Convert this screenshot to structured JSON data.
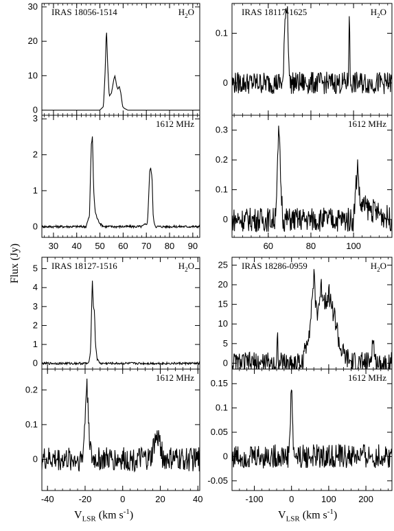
{
  "figure": {
    "y_axis_label": "Flux (Jy)",
    "x_axis_label_main": "V",
    "x_axis_label_sub": "LSR",
    "x_axis_label_unit_pre": "(km s",
    "x_axis_label_unit_sup": "-1",
    "x_axis_label_unit_post": ")"
  },
  "chart_data": [
    {
      "type": "line",
      "title": "IRAS 18056-1514",
      "tag": "H2O",
      "xlim": [
        25,
        93
      ],
      "ylim": [
        -1.5,
        31
      ],
      "yticks": [
        0,
        10,
        20,
        30
      ],
      "xticks": [
        30,
        40,
        50,
        60,
        70,
        80,
        90
      ],
      "show_xtick_labels": false,
      "series": [
        {
          "x": [
            25,
            50,
            51.5,
            52.2,
            52.8,
            53.3,
            54,
            55,
            56,
            56.5,
            57.2,
            57.8,
            58.3,
            59,
            59.8,
            60.5,
            62,
            66,
            93
          ],
          "values": [
            0,
            0,
            1,
            10,
            24,
            14,
            4,
            5,
            9,
            10,
            7,
            6,
            7,
            5,
            1,
            0.5,
            0,
            0,
            0
          ]
        }
      ]
    },
    {
      "type": "line",
      "title": "",
      "tag": "1612 MHz",
      "xlim": [
        25,
        93
      ],
      "ylim": [
        -0.3,
        3.1
      ],
      "yticks": [
        0,
        1,
        2,
        3
      ],
      "xticks": [
        30,
        40,
        50,
        60,
        70,
        80,
        90
      ],
      "show_xtick_labels": true,
      "series": [
        {
          "x": [
            25,
            44,
            45.5,
            46.3,
            46.8,
            47.3,
            48,
            49,
            50.5,
            52,
            68,
            70.5,
            71.5,
            72,
            72.5,
            73,
            74,
            93
          ],
          "values": [
            0,
            0,
            0.3,
            2.3,
            2.5,
            1.0,
            0.4,
            0.2,
            0.05,
            0,
            0,
            0.1,
            1.6,
            1.6,
            1.3,
            0.2,
            0,
            0
          ]
        }
      ]
    },
    {
      "type": "line",
      "title": "IRAS 18117-1625",
      "tag": "H2O",
      "xlim": [
        43,
        118
      ],
      "ylim": [
        -0.065,
        0.16
      ],
      "yticks": [
        0,
        0.1
      ],
      "xticks": [
        60,
        80,
        100
      ],
      "show_xtick_labels": false,
      "series": [
        {
          "x": [
            43,
            67,
            68,
            69,
            70,
            97.5,
            98,
            98.5,
            118
          ],
          "values": [
            0,
            0,
            0.15,
            0.15,
            0,
            0,
            0.15,
            0,
            0
          ]
        }
      ]
    },
    {
      "type": "line",
      "title": "",
      "tag": "1612 MHz",
      "xlim": [
        43,
        118
      ],
      "ylim": [
        -0.06,
        0.35
      ],
      "yticks": [
        0,
        0.1,
        0.2,
        0.3
      ],
      "xticks": [
        60,
        80,
        100
      ],
      "show_xtick_labels": true,
      "series": [
        {
          "x": [
            43,
            63,
            64,
            65,
            66,
            67,
            100,
            101,
            102,
            103,
            118
          ],
          "values": [
            0,
            0,
            0.1,
            0.31,
            0.1,
            0,
            0,
            0.1,
            0.19,
            0.05,
            0
          ]
        }
      ]
    },
    {
      "type": "line",
      "title": "IRAS 18127-1516",
      "tag": "H2O",
      "xlim": [
        -43,
        41
      ],
      "ylim": [
        -0.3,
        5.6
      ],
      "yticks": [
        0,
        1,
        2,
        3,
        4,
        5
      ],
      "xticks": [
        -40,
        -20,
        0,
        20,
        40
      ],
      "show_xtick_labels": false,
      "series": [
        {
          "x": [
            -43,
            -18,
            -17,
            -16.2,
            -15.6,
            -15,
            -14.5,
            -13.5,
            -12,
            41
          ],
          "values": [
            0,
            0,
            0.8,
            4.5,
            3.0,
            2.8,
            1.0,
            0.2,
            0,
            0
          ]
        }
      ]
    },
    {
      "type": "line",
      "title": "",
      "tag": "1612 MHz",
      "xlim": [
        -43,
        41
      ],
      "ylim": [
        -0.09,
        0.26
      ],
      "yticks": [
        0,
        0.1,
        0.2
      ],
      "xticks": [
        -40,
        -20,
        0,
        20,
        40
      ],
      "show_xtick_labels": true,
      "series": [
        {
          "x": [
            -43,
            -22,
            -21,
            -20,
            -19.3,
            -18.5,
            -17.5,
            -16.5,
            15,
            17,
            18.5,
            19.5,
            20.5,
            21.5,
            41
          ],
          "values": [
            0,
            0,
            0.02,
            0.12,
            0.22,
            0.17,
            0.05,
            0,
            0,
            0.05,
            0.06,
            0.06,
            0.03,
            0,
            0
          ]
        }
      ]
    },
    {
      "type": "line",
      "title": "IRAS 18286-0959",
      "tag": "H2O",
      "xlim": [
        -160,
        270
      ],
      "ylim": [
        -1.5,
        27
      ],
      "yticks": [
        0,
        5,
        10,
        15,
        20,
        25
      ],
      "xticks": [
        -100,
        0,
        100,
        200
      ],
      "show_xtick_labels": false,
      "series": [
        {
          "x": [
            -160,
            -40,
            -38,
            -36,
            30,
            40,
            50,
            60,
            65,
            70,
            80,
            90,
            100,
            110,
            120,
            130,
            140,
            150,
            160,
            210,
            215,
            220,
            225,
            270
          ],
          "values": [
            0,
            0,
            9,
            0,
            0,
            5,
            10,
            22,
            15,
            13,
            19,
            16,
            18,
            14,
            10,
            4,
            2,
            1,
            0,
            0,
            3,
            6,
            0,
            0
          ]
        }
      ]
    },
    {
      "type": "line",
      "title": "",
      "tag": "1612 MHz",
      "xlim": [
        -160,
        270
      ],
      "ylim": [
        -0.07,
        0.18
      ],
      "yticks": [
        -0.05,
        0,
        0.05,
        0.1,
        0.15
      ],
      "xticks": [
        -100,
        0,
        100,
        200
      ],
      "show_xtick_labels": true,
      "series": [
        {
          "x": [
            -160,
            -8,
            -4,
            -2,
            0,
            2,
            4,
            8,
            270
          ],
          "values": [
            0,
            0,
            0.05,
            0.12,
            0.15,
            0.1,
            0.03,
            0,
            0
          ]
        }
      ]
    }
  ]
}
